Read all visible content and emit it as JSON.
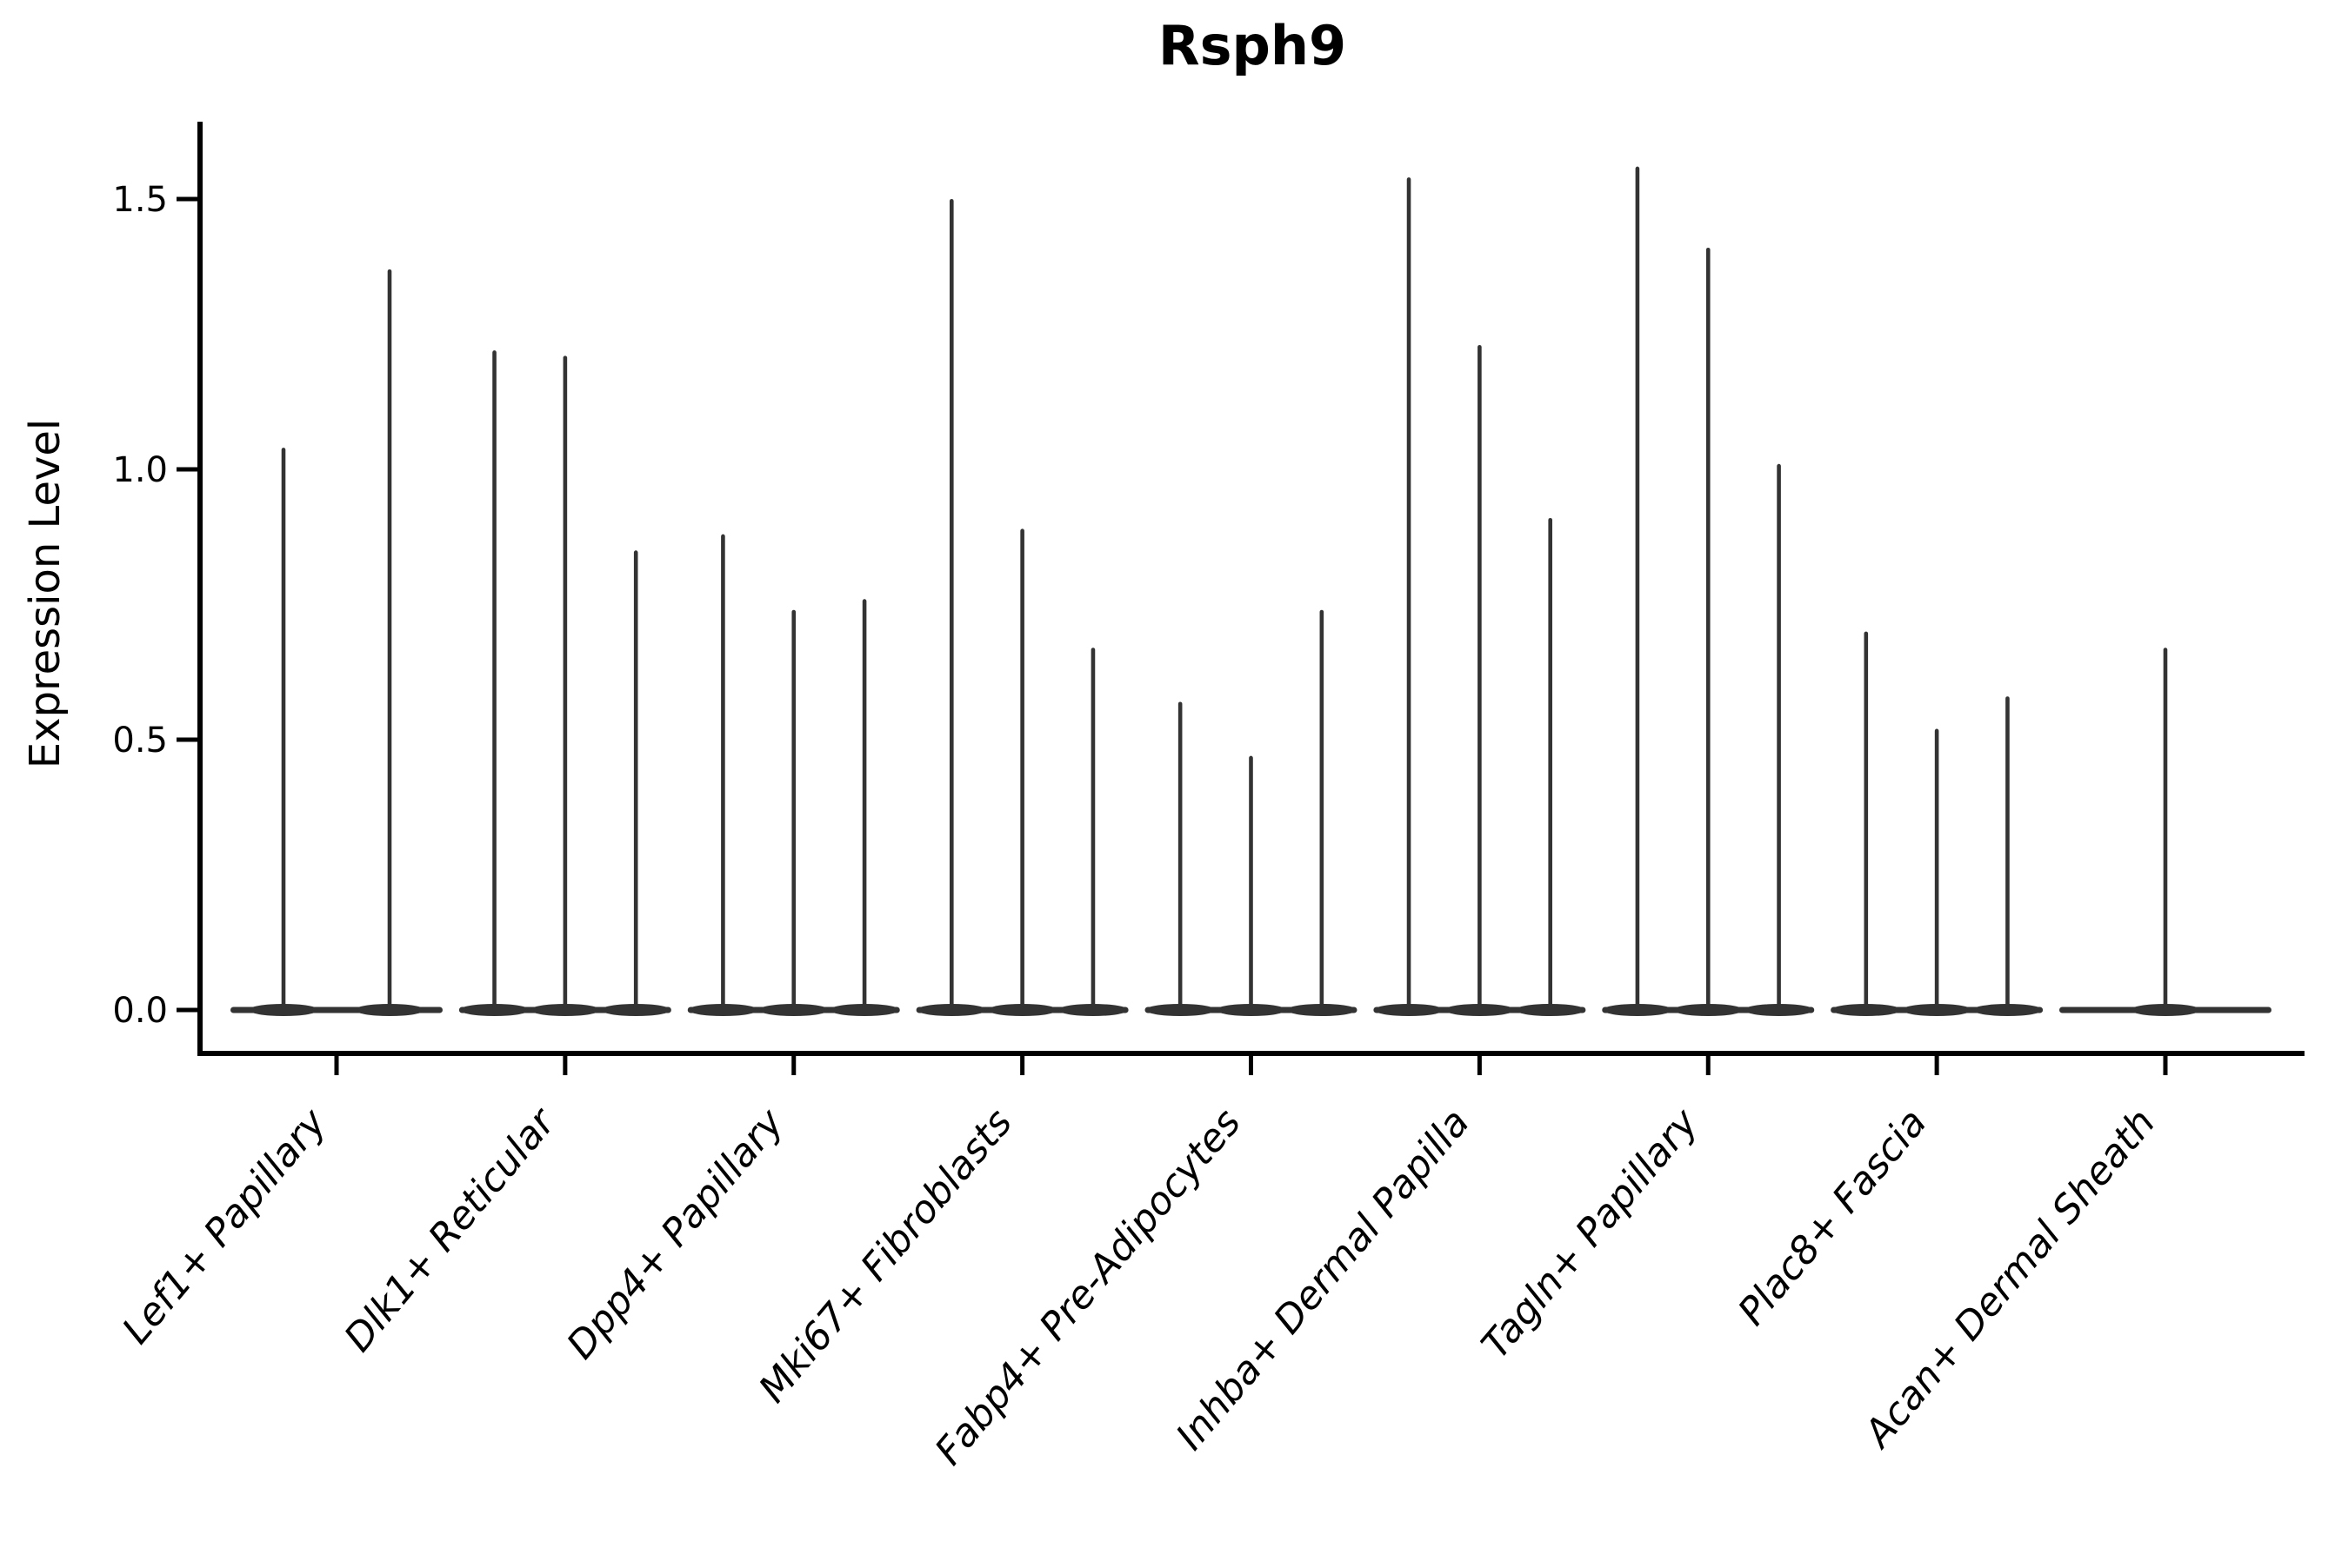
{
  "title": "Rsph9",
  "y_axis": {
    "label": "Expression Level",
    "tick_labels": [
      "0.0",
      "0.5",
      "1.0",
      "1.5"
    ]
  },
  "colors": {
    "violin": "#333333",
    "axis": "#000000",
    "background": "#ffffff"
  },
  "chart_data": {
    "type": "violin",
    "title": "Rsph9",
    "xlabel": "",
    "ylabel": "Expression Level",
    "ylim": [
      0,
      1.64
    ],
    "yticks": [
      0,
      0.5,
      1.0,
      1.5
    ],
    "grid": false,
    "legend": "none",
    "description": "Needle-thin violins: expression mass at 0 with thin spikes up to each violin's maximum; 2-3 violins per category group",
    "categories": [
      "Lef1+ Papillary",
      "Dlk1+ Reticular",
      "Dpp4+ Papillary",
      "Mki67+ Fibroblasts",
      "Fabp4+ Pre-Adipocytes",
      "Inhba+ Dermal Papilla",
      "Tagln+ Papillary",
      "Plac8+ Fascia",
      "Acan+ Dermal Sheath"
    ],
    "series": [
      {
        "name": "Lef1+ Papillary",
        "spike_maxima": [
          1.04,
          1.37
        ]
      },
      {
        "name": "Dlk1+ Reticular",
        "spike_maxima": [
          1.22,
          1.21,
          0.85
        ]
      },
      {
        "name": "Dpp4+ Papillary",
        "spike_maxima": [
          0.88,
          0.74,
          0.76
        ]
      },
      {
        "name": "Mki67+ Fibroblasts",
        "spike_maxima": [
          1.5,
          0.89,
          0.67
        ]
      },
      {
        "name": "Fabp4+ Pre-Adipocytes",
        "spike_maxima": [
          0.57,
          0.47,
          0.74
        ]
      },
      {
        "name": "Inhba+ Dermal Papilla",
        "spike_maxima": [
          1.54,
          1.23,
          0.91
        ]
      },
      {
        "name": "Tagln+ Papillary",
        "spike_maxima": [
          1.56,
          1.41,
          1.01
        ]
      },
      {
        "name": "Plac8+ Fascia",
        "spike_maxima": [
          0.7,
          0.52,
          0.58
        ]
      },
      {
        "name": "Acan+ Dermal Sheath",
        "spike_maxima": [
          0.67
        ]
      }
    ]
  }
}
